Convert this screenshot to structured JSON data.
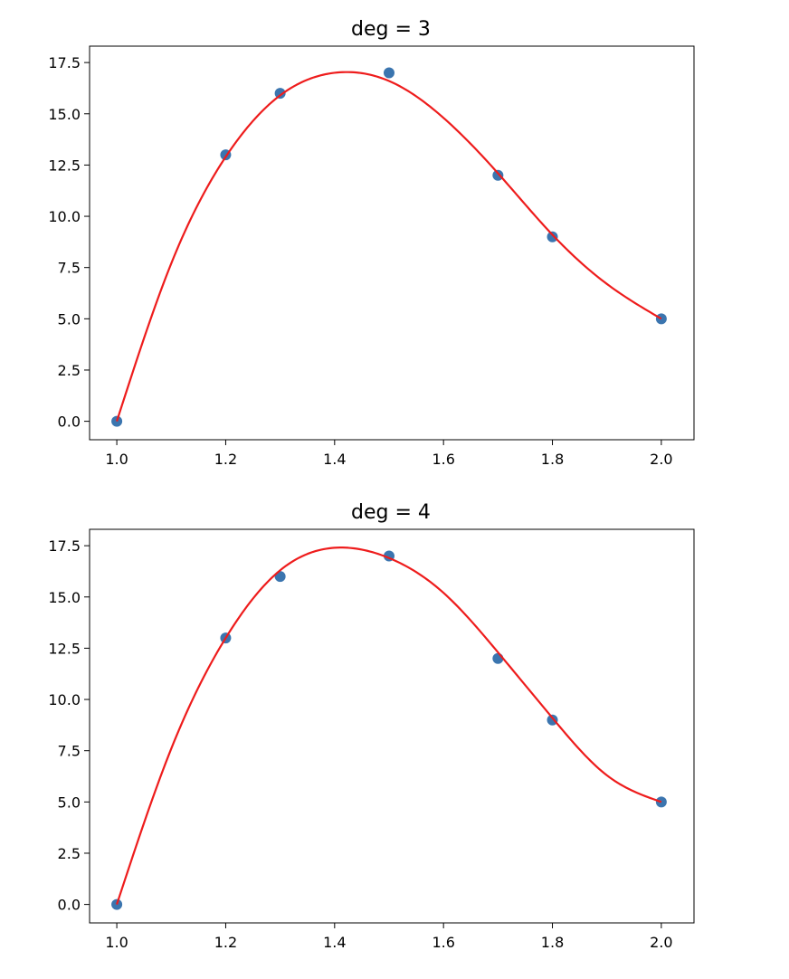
{
  "colors": {
    "point": "#3b75af",
    "fit_line": "#ee1c1c",
    "frame": "#000000",
    "background": "#ffffff"
  },
  "chart_data": [
    {
      "type": "scatter",
      "title": "deg = 3",
      "xlabel": "",
      "ylabel": "",
      "xlim": [
        0.95,
        2.06
      ],
      "ylim": [
        -0.9,
        18.3
      ],
      "xticks": [
        1.0,
        1.2,
        1.4,
        1.6,
        1.8,
        2.0
      ],
      "xtick_labels": [
        "1.0",
        "1.2",
        "1.4",
        "1.6",
        "1.8",
        "2.0"
      ],
      "yticks": [
        0.0,
        2.5,
        5.0,
        7.5,
        10.0,
        12.5,
        15.0,
        17.5
      ],
      "ytick_labels": [
        "0.0",
        "2.5",
        "5.0",
        "7.5",
        "10.0",
        "12.5",
        "15.0",
        "17.5"
      ],
      "grid": false,
      "series": [
        {
          "kind": "scatter",
          "x": [
            1.0,
            1.2,
            1.3,
            1.5,
            1.7,
            1.8,
            2.0
          ],
          "y": [
            0,
            13,
            16,
            17,
            12,
            9,
            5
          ]
        },
        {
          "kind": "line",
          "x": [
            1.0,
            1.1,
            1.2,
            1.3,
            1.4,
            1.5,
            1.6,
            1.7,
            1.8,
            1.9,
            2.0
          ],
          "y": [
            0.0,
            7.7,
            12.9,
            15.9,
            17.0,
            16.6,
            14.8,
            12.1,
            9.1,
            6.7,
            5.0
          ]
        }
      ]
    },
    {
      "type": "scatter",
      "title": "deg = 4",
      "xlabel": "",
      "ylabel": "",
      "xlim": [
        0.95,
        2.06
      ],
      "ylim": [
        -0.9,
        18.3
      ],
      "xticks": [
        1.0,
        1.2,
        1.4,
        1.6,
        1.8,
        2.0
      ],
      "xtick_labels": [
        "1.0",
        "1.2",
        "1.4",
        "1.6",
        "1.8",
        "2.0"
      ],
      "yticks": [
        0.0,
        2.5,
        5.0,
        7.5,
        10.0,
        12.5,
        15.0,
        17.5
      ],
      "ytick_labels": [
        "0.0",
        "2.5",
        "5.0",
        "7.5",
        "10.0",
        "12.5",
        "15.0",
        "17.5"
      ],
      "grid": false,
      "series": [
        {
          "kind": "scatter",
          "x": [
            1.0,
            1.2,
            1.3,
            1.5,
            1.7,
            1.8,
            2.0
          ],
          "y": [
            0,
            13,
            16,
            17,
            12,
            9,
            5
          ]
        },
        {
          "kind": "line",
          "x": [
            1.0,
            1.1,
            1.2,
            1.3,
            1.4,
            1.5,
            1.6,
            1.7,
            1.8,
            1.9,
            2.0
          ],
          "y": [
            0.0,
            7.6,
            13.0,
            16.3,
            17.4,
            16.9,
            15.2,
            12.3,
            9.1,
            6.3,
            5.0
          ]
        }
      ]
    }
  ]
}
